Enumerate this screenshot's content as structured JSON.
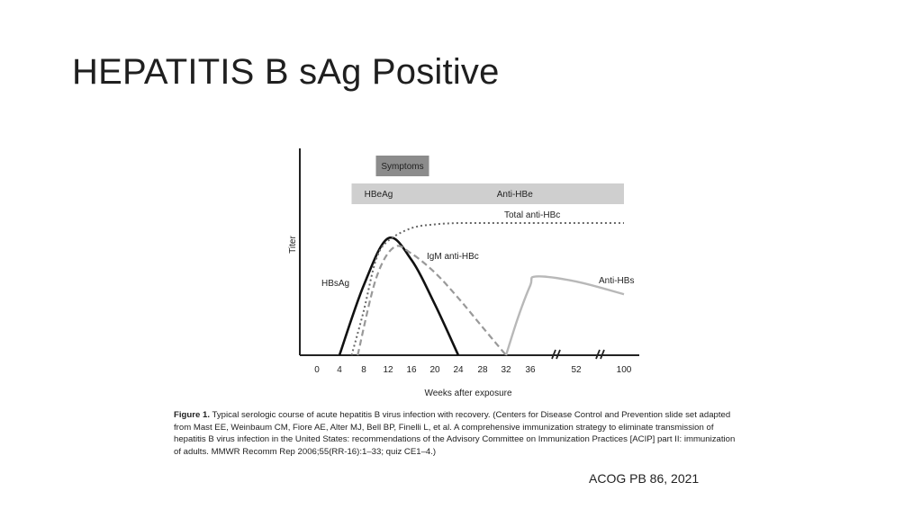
{
  "slide": {
    "title": "HEPATITIS B sAg Positive",
    "source": "ACOG PB 86, 2021"
  },
  "caption": {
    "label": "Figure 1.",
    "text": "Typical serologic course of acute hepatitis B virus infection with recovery. (Centers for Disease Control and Prevention slide set adapted from Mast EE, Weinbaum CM, Fiore AE, Alter MJ, Bell BP, Finelli L, et al. A comprehensive immunization strategy to eliminate transmission of hepatitis B virus infection in the United States: recommendations of the Advisory Committee on Immunization Practices [ACIP] part II: immunization of adults. MMWR Recomm Rep 2006;55(RR-16):1–33; quiz CE1–4.)"
  },
  "chart_data": {
    "type": "line",
    "title": "",
    "xlabel": "Weeks after exposure",
    "ylabel": "Titer",
    "x_ticks": [
      "0",
      "4",
      "8",
      "12",
      "16",
      "20",
      "24",
      "28",
      "32",
      "36",
      "52",
      "100"
    ],
    "axis_break": "double slash marks after 36 and after 52",
    "bands": [
      {
        "label": "Symptoms",
        "start": "10",
        "end": "19",
        "color": "#8c8c8c"
      },
      {
        "label": "HBeAg",
        "start": "6",
        "end": "15",
        "color": "#cfcfcf"
      },
      {
        "label": "Anti-HBe",
        "start": "15",
        "end": "100",
        "color": "#cfcfcf"
      }
    ],
    "series": [
      {
        "name": "HBsAg",
        "style": "solid-black",
        "x": [
          "4",
          "8",
          "12",
          "16",
          "20",
          "24"
        ],
        "y": [
          0,
          0.55,
          0.92,
          0.75,
          0.4,
          0
        ]
      },
      {
        "name": "IgM anti-HBc",
        "style": "dashed-gray",
        "x": [
          "7",
          "10",
          "13",
          "16",
          "20",
          "24",
          "28",
          "32"
        ],
        "y": [
          0,
          0.6,
          0.85,
          0.8,
          0.65,
          0.45,
          0.22,
          0
        ]
      },
      {
        "name": "Total anti-HBc",
        "style": "dotted-gray",
        "x": [
          "6",
          "8",
          "10",
          "12",
          "16",
          "20",
          "24",
          "28",
          "32",
          "36",
          "52",
          "100"
        ],
        "y": [
          0,
          0.35,
          0.75,
          0.9,
          1.0,
          1.03,
          1.04,
          1.04,
          1.04,
          1.04,
          1.04,
          1.04
        ]
      },
      {
        "name": "Anti-HBs",
        "style": "solid-lightgray",
        "x": [
          "32",
          "34",
          "36",
          "38",
          "52",
          "100"
        ],
        "y": [
          0,
          0.3,
          0.55,
          0.62,
          0.58,
          0.48
        ]
      }
    ],
    "grid": false,
    "legend": "inline labels"
  }
}
